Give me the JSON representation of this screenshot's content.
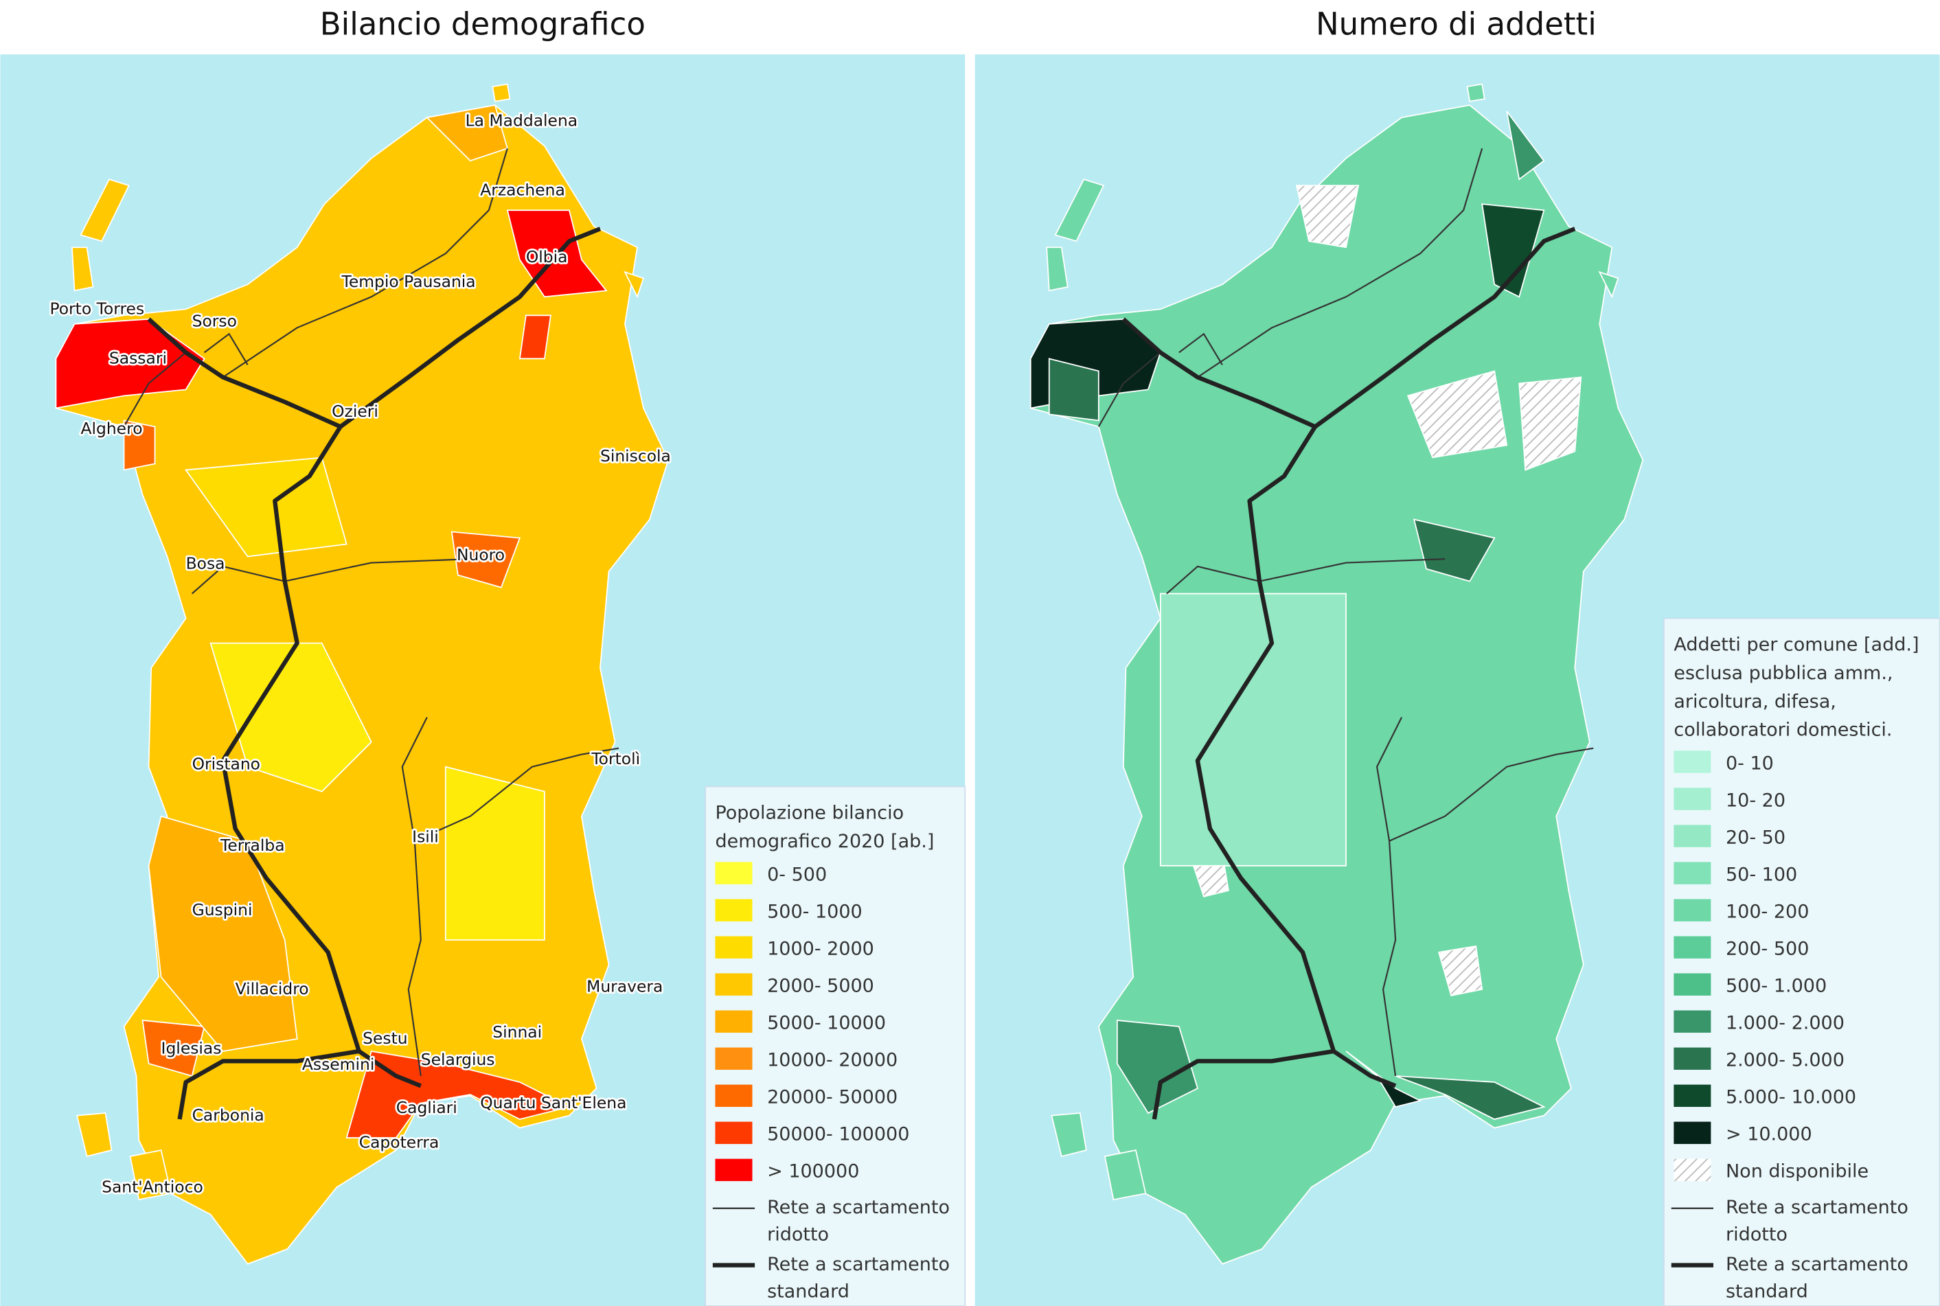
{
  "left": {
    "title": "Bilancio demografico",
    "cities": [
      "La Maddalena",
      "Arzachena",
      "Olbia",
      "Tempio Pausania",
      "Porto Torres",
      "Sorso",
      "Sassari",
      "Alghero",
      "Ozieri",
      "Siniscola",
      "Bosa",
      "Nuoro",
      "Oristano",
      "Tortolì",
      "Isili",
      "Terralba",
      "Guspini",
      "Villacidro",
      "Muravera",
      "Sestu",
      "Sinnai",
      "Iglesias",
      "Selargius",
      "Assemini",
      "Quartu Sant'Elena",
      "Cagliari",
      "Carbonia",
      "Capoterra",
      "Sant'Antioco"
    ],
    "legend": {
      "title": [
        "Popolazione bilancio",
        "demografico 2020 [ab.]"
      ],
      "items": [
        {
          "label": "0- 500",
          "color": "#ffff33"
        },
        {
          "label": "500- 1000",
          "color": "#ffeb0a"
        },
        {
          "label": "1000- 2000",
          "color": "#ffdc00"
        },
        {
          "label": "2000- 5000",
          "color": "#ffc800"
        },
        {
          "label": "5000- 10000",
          "color": "#ffb000"
        },
        {
          "label": "10000- 20000",
          "color": "#ff9010"
        },
        {
          "label": "20000- 50000",
          "color": "#ff6a00"
        },
        {
          "label": "50000- 100000",
          "color": "#ff3a00"
        },
        {
          "label": "> 100000",
          "color": "#ff0000"
        }
      ],
      "lines": [
        [
          "Rete a scartamento",
          "ridotto"
        ],
        [
          "Rete a scartamento",
          "standard"
        ]
      ]
    }
  },
  "right": {
    "title": "Numero di addetti",
    "legend": {
      "title": [
        "Addetti per comune [add.]",
        "esclusa pubblica amm.,",
        "aricoltura, difesa,",
        "collaboratori domestici."
      ],
      "items": [
        {
          "label": "0- 10",
          "color": "#b2f5dc"
        },
        {
          "label": "10- 20",
          "color": "#a3efd0"
        },
        {
          "label": "20- 50",
          "color": "#94e9c4"
        },
        {
          "label": "50- 100",
          "color": "#82e2b7"
        },
        {
          "label": "100- 200",
          "color": "#6fd8a7"
        },
        {
          "label": "200- 500",
          "color": "#5ccd98"
        },
        {
          "label": "500- 1.000",
          "color": "#4cc088"
        },
        {
          "label": "1.000- 2.000",
          "color": "#39956a"
        },
        {
          "label": "2.000- 5.000",
          "color": "#2a7450"
        },
        {
          "label": "5.000- 10.000",
          "color": "#0f4a2c"
        },
        {
          "label": "> 10.000",
          "color": "#06241a"
        },
        {
          "label": "Non disponibile",
          "color": "hatch"
        }
      ],
      "lines": [
        [
          "Rete a scartamento",
          "ridotto"
        ],
        [
          "Rete a scartamento",
          "standard"
        ]
      ]
    }
  }
}
